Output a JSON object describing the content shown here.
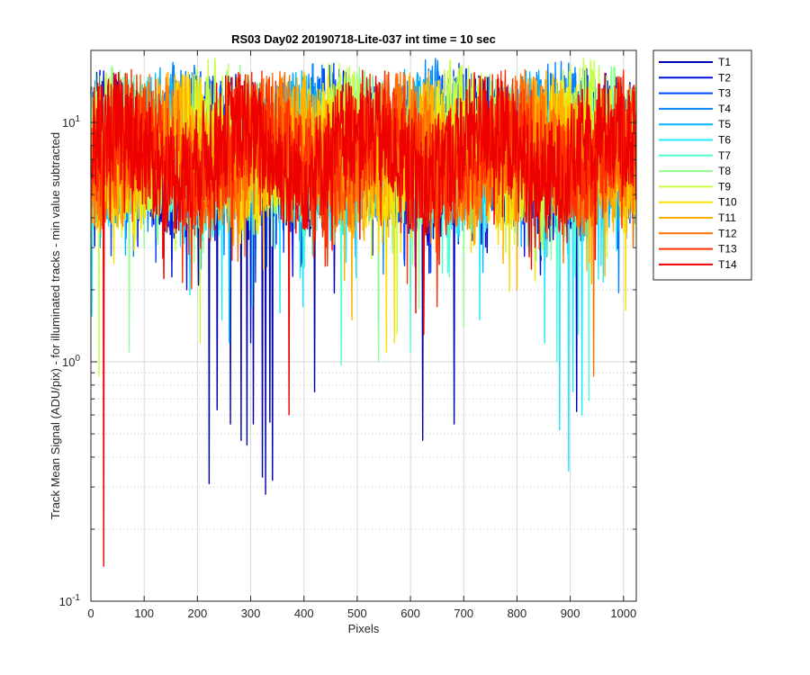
{
  "chart_data": {
    "type": "line",
    "title": "RS03 Day02 20190718-Lite-037 int time = 10 sec",
    "xlabel": "Pixels",
    "ylabel": "Track Mean Signal (ADU/pix) - for illuminated tracks - min value subtracted",
    "yscale": "log",
    "xlim": [
      0,
      1024
    ],
    "ylim": [
      0.1,
      20
    ],
    "x_ticks": [
      0,
      100,
      200,
      300,
      400,
      500,
      600,
      700,
      800,
      900,
      1000
    ],
    "x_tick_labels": [
      "0",
      "100",
      "200",
      "300",
      "400",
      "500",
      "600",
      "700",
      "800",
      "900",
      "1000"
    ],
    "y_ticks": [
      0.1,
      1,
      10
    ],
    "y_tick_labels": [
      {
        "base": "10",
        "exp": "-1"
      },
      {
        "base": "10",
        "exp": "0"
      },
      {
        "base": "10",
        "exp": "1"
      }
    ],
    "grid": true,
    "legend_position": "outside-right",
    "series": [
      {
        "name": "T1",
        "color": "#0000b3",
        "typical": 7.0,
        "spikes": [
          [
            222,
            0.31
          ],
          [
            237,
            0.63
          ],
          [
            262,
            0.55
          ],
          [
            282,
            0.47
          ],
          [
            293,
            0.45
          ],
          [
            305,
            0.55
          ],
          [
            322,
            0.33
          ],
          [
            328,
            0.28
          ],
          [
            336,
            0.56
          ],
          [
            341,
            0.32
          ],
          [
            420,
            0.75
          ],
          [
            623,
            0.47
          ],
          [
            682,
            0.55
          ],
          [
            912,
            0.62
          ]
        ]
      },
      {
        "name": "T2",
        "color": "#0010e0",
        "typical": 7.5,
        "spikes": [
          [
            180,
            2.0
          ],
          [
            300,
            1.2
          ],
          [
            540,
            1.5
          ]
        ]
      },
      {
        "name": "T3",
        "color": "#0045ff",
        "typical": 8.0,
        "spikes": [
          [
            330,
            2.5
          ],
          [
            470,
            2.2
          ]
        ]
      },
      {
        "name": "T4",
        "color": "#0085ff",
        "typical": 8.5,
        "spikes": [
          [
            250,
            2.8
          ],
          [
            610,
            3.0
          ]
        ]
      },
      {
        "name": "T5",
        "color": "#00b8ff",
        "typical": 7.8,
        "spikes": [
          [
            260,
            1.2
          ],
          [
            600,
            1.8
          ]
        ]
      },
      {
        "name": "T6",
        "color": "#20e8ff",
        "typical": 7.0,
        "spikes": [
          [
            186,
            1.9
          ],
          [
            246,
            1.5
          ],
          [
            303,
            1.7
          ],
          [
            355,
            1.6
          ],
          [
            398,
            1.7
          ],
          [
            540,
            1.4
          ],
          [
            730,
            1.5
          ],
          [
            852,
            1.2
          ],
          [
            880,
            0.52
          ],
          [
            897,
            0.35
          ],
          [
            905,
            0.75
          ],
          [
            922,
            0.6
          ]
        ]
      },
      {
        "name": "T7",
        "color": "#50ffd0",
        "typical": 7.2,
        "spikes": [
          [
            470,
            0.97
          ],
          [
            600,
            1.1
          ],
          [
            875,
            1.0
          ],
          [
            915,
            1.3
          ],
          [
            935,
            0.69
          ]
        ]
      },
      {
        "name": "T8",
        "color": "#90ff90",
        "typical": 8.0,
        "spikes": [
          [
            72,
            1.1
          ],
          [
            540,
            1.0
          ],
          [
            700,
            1.4
          ]
        ]
      },
      {
        "name": "T9",
        "color": "#c8ff40",
        "typical": 8.5,
        "spikes": [
          [
            15,
            0.87
          ],
          [
            205,
            1.2
          ],
          [
            575,
            1.3
          ]
        ]
      },
      {
        "name": "T10",
        "color": "#f8e000",
        "typical": 7.5,
        "spikes": [
          [
            555,
            1.1
          ],
          [
            570,
            1.2
          ]
        ]
      },
      {
        "name": "T11",
        "color": "#ffb000",
        "typical": 7.5,
        "spikes": [
          [
            490,
            1.5
          ],
          [
            800,
            2.0
          ]
        ]
      },
      {
        "name": "T12",
        "color": "#ff7000",
        "typical": 7.5,
        "spikes": [
          [
            944,
            0.87
          ]
        ]
      },
      {
        "name": "T13",
        "color": "#ff3000",
        "typical": 7.5,
        "spikes": [
          [
            650,
            1.7
          ]
        ]
      },
      {
        "name": "T14",
        "color": "#ee0000",
        "typical": 7.5,
        "spikes": [
          [
            24,
            0.14
          ],
          [
            372,
            0.6
          ],
          [
            610,
            1.6
          ],
          [
            625,
            1.3
          ]
        ]
      }
    ]
  }
}
